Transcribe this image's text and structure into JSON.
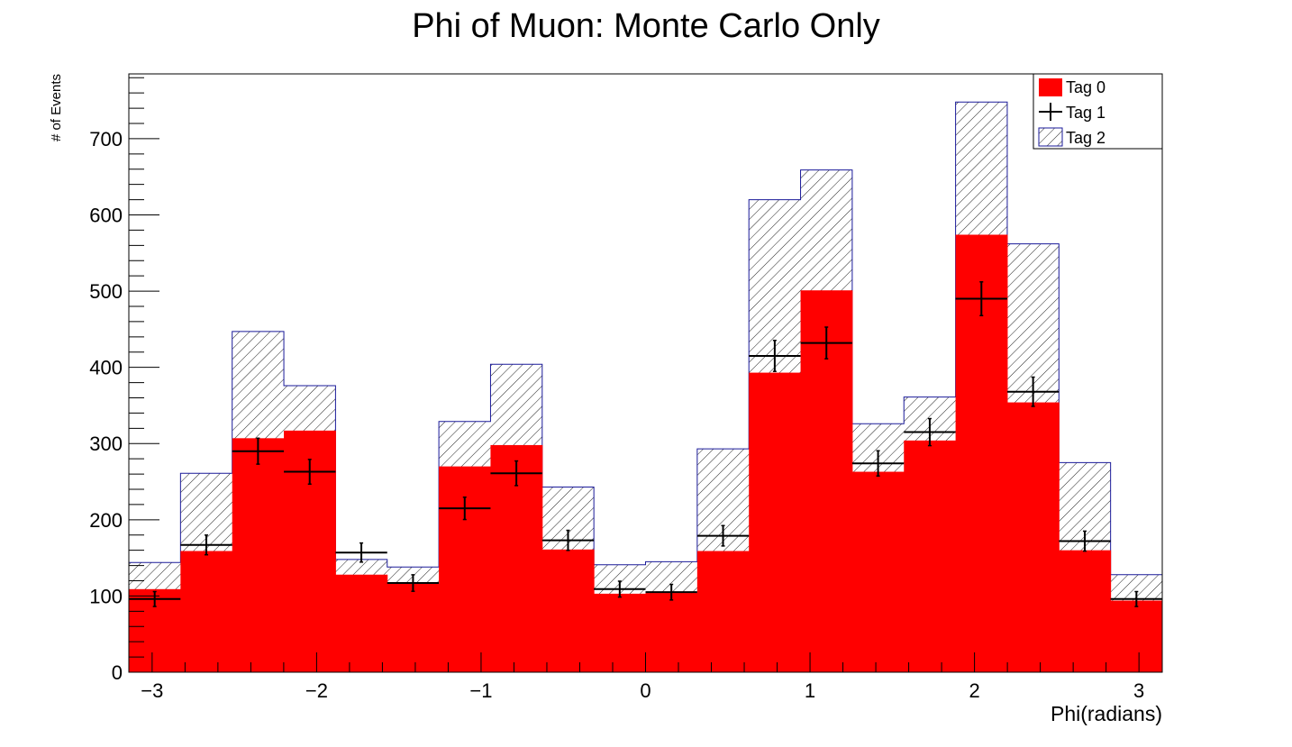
{
  "chart_data": {
    "type": "bar",
    "title": "Phi of Muon: Monte Carlo Only",
    "xlabel": "Phi(radians)",
    "ylabel": "# of Events",
    "xlim": [
      -3.1416,
      3.1416
    ],
    "ylim": [
      0,
      785
    ],
    "x_ticks": [
      -3,
      -2,
      -1,
      0,
      1,
      2,
      3
    ],
    "x_tick_labels": [
      "−3",
      "−2",
      "−1",
      "0",
      "1",
      "2",
      "3"
    ],
    "y_ticks": [
      0,
      100,
      200,
      300,
      400,
      500,
      600,
      700
    ],
    "y_tick_labels": [
      "0",
      "100",
      "200",
      "300",
      "400",
      "500",
      "600",
      "700"
    ],
    "bins": 20,
    "grid": false,
    "legend_position": "top-right",
    "colors": {
      "tag0": "#ff0000",
      "tag1": "#000000",
      "tag2_hatch": "#1a1a99"
    },
    "series": [
      {
        "name": "Tag 0",
        "style": "filled",
        "values": [
          109,
          159,
          307,
          317,
          128,
          116,
          270,
          298,
          161,
          103,
          104,
          159,
          393,
          501,
          263,
          304,
          574,
          354,
          160,
          94
        ]
      },
      {
        "name": "Tag 1",
        "style": "points-with-errors",
        "values": [
          96,
          167,
          290,
          263,
          157,
          117,
          215,
          261,
          173,
          109,
          105,
          179,
          415,
          432,
          274,
          315,
          490,
          368,
          172,
          96
        ]
      },
      {
        "name": "Tag 2",
        "style": "hatched-outline",
        "values": [
          144,
          261,
          447,
          376,
          148,
          138,
          329,
          404,
          243,
          141,
          145,
          293,
          620,
          659,
          326,
          361,
          748,
          562,
          275,
          128
        ]
      }
    ]
  }
}
